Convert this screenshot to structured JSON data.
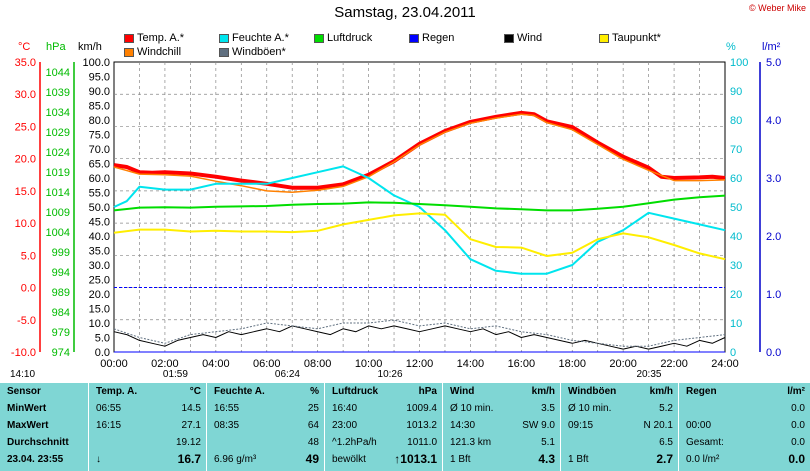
{
  "header": {
    "title": "Samstag, 23.04.2011",
    "credit": "© Weber Mike"
  },
  "legend": [
    {
      "label": "Temp. A.*",
      "color": "#ff0000"
    },
    {
      "label": "Feuchte A.*",
      "color": "#00e5ee"
    },
    {
      "label": "Luftdruck",
      "color": "#00dd00"
    },
    {
      "label": "Regen",
      "color": "#0000ff"
    },
    {
      "label": "Wind",
      "color": "#000000"
    },
    {
      "label": "Taupunkt*",
      "color": "#ffee00"
    },
    {
      "label": "Windchill",
      "color": "#ff8000"
    },
    {
      "label": "Windböen*",
      "color": "#607080"
    }
  ],
  "axes": {
    "temp": {
      "unit": "°C",
      "ticks": [
        "35.0",
        "30.0",
        "25.0",
        "20.0",
        "15.0",
        "10.0",
        "5.0",
        "0.0",
        "-5.0",
        "-10.0"
      ],
      "color": "#ff0000"
    },
    "pressure": {
      "unit": "hPa",
      "ticks": [
        "1044",
        "1039",
        "1034",
        "1029",
        "1024",
        "1019",
        "1014",
        "1009",
        "1004",
        "999",
        "994",
        "989",
        "984",
        "979",
        "974"
      ],
      "color": "#00bb00"
    },
    "wind": {
      "unit": "km/h",
      "ticks": [
        "100.0",
        "95.0",
        "90.0",
        "85.0",
        "80.0",
        "75.0",
        "70.0",
        "65.0",
        "60.0",
        "55.0",
        "50.0",
        "45.0",
        "40.0",
        "35.0",
        "30.0",
        "25.0",
        "20.0",
        "15.0",
        "10.0",
        "5.0",
        "0.0"
      ]
    },
    "humidity": {
      "unit": "%",
      "ticks": [
        "100",
        "90",
        "80",
        "70",
        "60",
        "50",
        "40",
        "30",
        "20",
        "10",
        "0"
      ],
      "color": "#00bbcc"
    },
    "rain": {
      "unit": "l/m²",
      "ticks": [
        "5.0",
        "4.0",
        "3.0",
        "2.0",
        "1.0",
        "0.0"
      ],
      "color": "#0000cc"
    },
    "time_ticks": [
      "00:00",
      "02:00",
      "04:00",
      "06:00",
      "08:00",
      "10:00",
      "12:00",
      "14:00",
      "16:00",
      "18:00",
      "20:00",
      "22:00",
      "24:00"
    ]
  },
  "markers": [
    {
      "label": "14:10",
      "hour": -3
    },
    {
      "label": "01:59",
      "hour": 2
    },
    {
      "label": "06:24",
      "hour": 6.4
    },
    {
      "label": "10:26",
      "hour": 10.43
    },
    {
      "label": "20:35",
      "hour": 20.6
    }
  ],
  "chart_data": {
    "type": "line",
    "x_unit": "hour",
    "xlim": [
      0,
      24
    ],
    "series": [
      {
        "name": "Temp. A.*",
        "axis": "temp_c",
        "color": "#ff0000",
        "x": [
          0,
          0.5,
          1,
          1.5,
          2,
          3,
          4,
          5,
          6,
          7,
          8,
          9,
          10,
          11,
          12,
          13,
          14,
          15,
          16,
          16.5,
          17,
          18,
          19,
          20,
          21,
          21.5,
          22,
          23,
          23.5,
          24
        ],
        "y": [
          19,
          18.7,
          17.9,
          17.8,
          17.9,
          17.7,
          17.2,
          16.6,
          16.1,
          15.5,
          15.5,
          16,
          17.5,
          19.6,
          22.3,
          24.3,
          25.7,
          26.5,
          27.1,
          26.9,
          25.8,
          24.9,
          22.5,
          20.3,
          18.6,
          17.2,
          17,
          17.1,
          17.2,
          17
        ]
      },
      {
        "name": "Windchill",
        "axis": "temp_c",
        "color": "#ff8000",
        "x": [
          0,
          1,
          2,
          3,
          4,
          5,
          6,
          7,
          8,
          9,
          10,
          11,
          12,
          13,
          14,
          15,
          16,
          16.5,
          17,
          18,
          19,
          20,
          21,
          22,
          23,
          24
        ],
        "y": [
          18.7,
          17.6,
          17.5,
          17.3,
          16.5,
          15.8,
          15,
          14.8,
          15.1,
          15.7,
          17.2,
          19.5,
          22.1,
          24.1,
          25.5,
          26.3,
          26.9,
          26.7,
          25.6,
          24.5,
          22.2,
          19.9,
          18.2,
          16.6,
          16.6,
          16.7
        ]
      },
      {
        "name": "Feuchte A.*",
        "axis": "humidity_pct",
        "color": "#00e5ee",
        "x": [
          0,
          0.5,
          1,
          2,
          3,
          4,
          5,
          6,
          7,
          8,
          9,
          10,
          11,
          12,
          13,
          14,
          15,
          16,
          17,
          18,
          19,
          20,
          21,
          22,
          23,
          24
        ],
        "y": [
          50,
          52,
          57,
          56,
          56,
          58,
          58,
          58,
          60,
          62,
          64,
          60,
          54,
          50,
          42,
          32,
          28,
          27,
          27,
          30,
          38,
          42,
          48,
          46,
          44,
          42
        ]
      },
      {
        "name": "Taupunkt*",
        "axis": "temp_c",
        "color": "#ffee00",
        "x": [
          0,
          1,
          2,
          3,
          4,
          5,
          6,
          7,
          8,
          9,
          10,
          11,
          12,
          13,
          14,
          15,
          16,
          17,
          18,
          19,
          20,
          21,
          22,
          23,
          24
        ],
        "y": [
          8.5,
          9,
          9,
          8.7,
          8.8,
          8.7,
          8.7,
          8.6,
          8.8,
          9.8,
          10.5,
          11.2,
          11.5,
          11.3,
          7.5,
          6.3,
          6.2,
          4.9,
          5.4,
          7.5,
          8.4,
          7.8,
          6.6,
          5.3,
          4.4
        ]
      },
      {
        "name": "Luftdruck",
        "axis": "pressure_hpa",
        "color": "#00dd00",
        "x": [
          0,
          1,
          2,
          3,
          4,
          5,
          6,
          7,
          8,
          9,
          10,
          11,
          12,
          13,
          14,
          15,
          16,
          17,
          18,
          19,
          20,
          21,
          22,
          23,
          24
        ],
        "y": [
          1009.4,
          1010.1,
          1010.2,
          1010.1,
          1010.3,
          1010.4,
          1010.5,
          1010.8,
          1011,
          1011.1,
          1011.4,
          1011.3,
          1011,
          1010.7,
          1010.3,
          1009.9,
          1009.7,
          1009.4,
          1009.4,
          1009.8,
          1010.3,
          1011.2,
          1012.1,
          1012.7,
          1013.1
        ]
      },
      {
        "name": "Regen",
        "axis": "rain_mm",
        "color": "#0000ff",
        "x": [
          0,
          24
        ],
        "y": [
          0,
          0
        ]
      },
      {
        "name": "Wind",
        "axis": "wind_kmh",
        "color": "#000000",
        "x": [
          0,
          0.5,
          1,
          1.5,
          2,
          2.5,
          3,
          3.5,
          4,
          4.5,
          5,
          5.5,
          6,
          6.5,
          7,
          7.5,
          8,
          8.5,
          9,
          9.5,
          10,
          10.5,
          11,
          11.5,
          12,
          12.5,
          13,
          13.5,
          14,
          14.5,
          15,
          15.5,
          16,
          16.5,
          17,
          17.5,
          18,
          18.5,
          19,
          19.5,
          20,
          20.5,
          21,
          21.5,
          22,
          22.5,
          23,
          23.5,
          24
        ],
        "y": [
          7,
          6,
          4,
          3,
          2,
          4,
          5,
          6,
          5,
          7,
          6,
          7,
          8,
          7,
          9,
          8,
          7,
          6,
          8,
          7,
          9,
          8,
          9,
          8,
          7,
          8,
          9,
          8,
          7,
          8,
          6,
          7,
          5,
          6,
          5,
          4,
          3,
          4,
          3,
          2,
          1,
          2,
          1,
          2,
          3,
          2,
          4,
          3,
          5
        ]
      },
      {
        "name": "Windböen*",
        "axis": "wind_kmh",
        "color": "#607080",
        "x": [
          0,
          1,
          2,
          3,
          4,
          5,
          6,
          7,
          8,
          9,
          10,
          11,
          12,
          13,
          14,
          15,
          16,
          17,
          18,
          19,
          20,
          21,
          22,
          23,
          24
        ],
        "y": [
          8,
          5,
          3,
          6,
          7,
          8,
          10,
          9,
          8,
          10,
          10,
          11,
          9,
          10,
          8,
          9,
          7,
          6,
          4,
          3,
          2,
          2,
          4,
          5,
          6
        ]
      }
    ],
    "reference_line": {
      "axis": "temp_c",
      "y": 0,
      "color": "#0000ff",
      "style": "dashed"
    }
  },
  "table": {
    "col_sensor": {
      "header": "Sensor",
      "rows": [
        "MinWert",
        "MaxWert",
        "Durchschnitt",
        "23.04.  23:55"
      ]
    },
    "col_temp": {
      "header": "Temp. A.",
      "unit": "°C",
      "rows": [
        [
          "06:55",
          "14.5"
        ],
        [
          "16:15",
          "27.1"
        ],
        [
          "",
          "19.12"
        ],
        [
          "↓",
          "16.7"
        ]
      ]
    },
    "col_hum": {
      "header": "Feuchte A.",
      "unit": "%",
      "rows": [
        [
          "16:55",
          "25"
        ],
        [
          "08:35",
          "64"
        ],
        [
          "",
          "48"
        ],
        [
          "6.96 g/m³",
          "49"
        ]
      ]
    },
    "col_press": {
      "header": "Luftdruck",
      "unit": "hPa",
      "rows": [
        [
          "16:40",
          "1009.4"
        ],
        [
          "23:00",
          "1013.2"
        ],
        [
          "^1.2hPa/h",
          "1011.0"
        ],
        [
          "bewölkt",
          "↑1013.1"
        ]
      ]
    },
    "col_wind": {
      "header": "Wind",
      "unit": "km/h",
      "rows": [
        [
          "Ø 10 min.",
          "3.5"
        ],
        [
          "14:30",
          "SW 9.0"
        ],
        [
          "121.3 km",
          "5.1"
        ],
        [
          "1 Bft",
          "4.3"
        ]
      ]
    },
    "col_gust": {
      "header": "Windböen",
      "unit": "km/h",
      "rows": [
        [
          "Ø 10 min.",
          "5.2"
        ],
        [
          "09:15",
          "N 20.1"
        ],
        [
          "",
          "6.5"
        ],
        [
          "1 Bft",
          "2.7"
        ]
      ]
    },
    "col_rain": {
      "header": "Regen",
      "unit": "l/m²",
      "rows": [
        [
          "",
          "0.0"
        ],
        [
          "00:00",
          "0.0"
        ],
        [
          "Gesamt:",
          "0.0"
        ],
        [
          "0.0 l/m²",
          "0.0"
        ]
      ]
    }
  }
}
